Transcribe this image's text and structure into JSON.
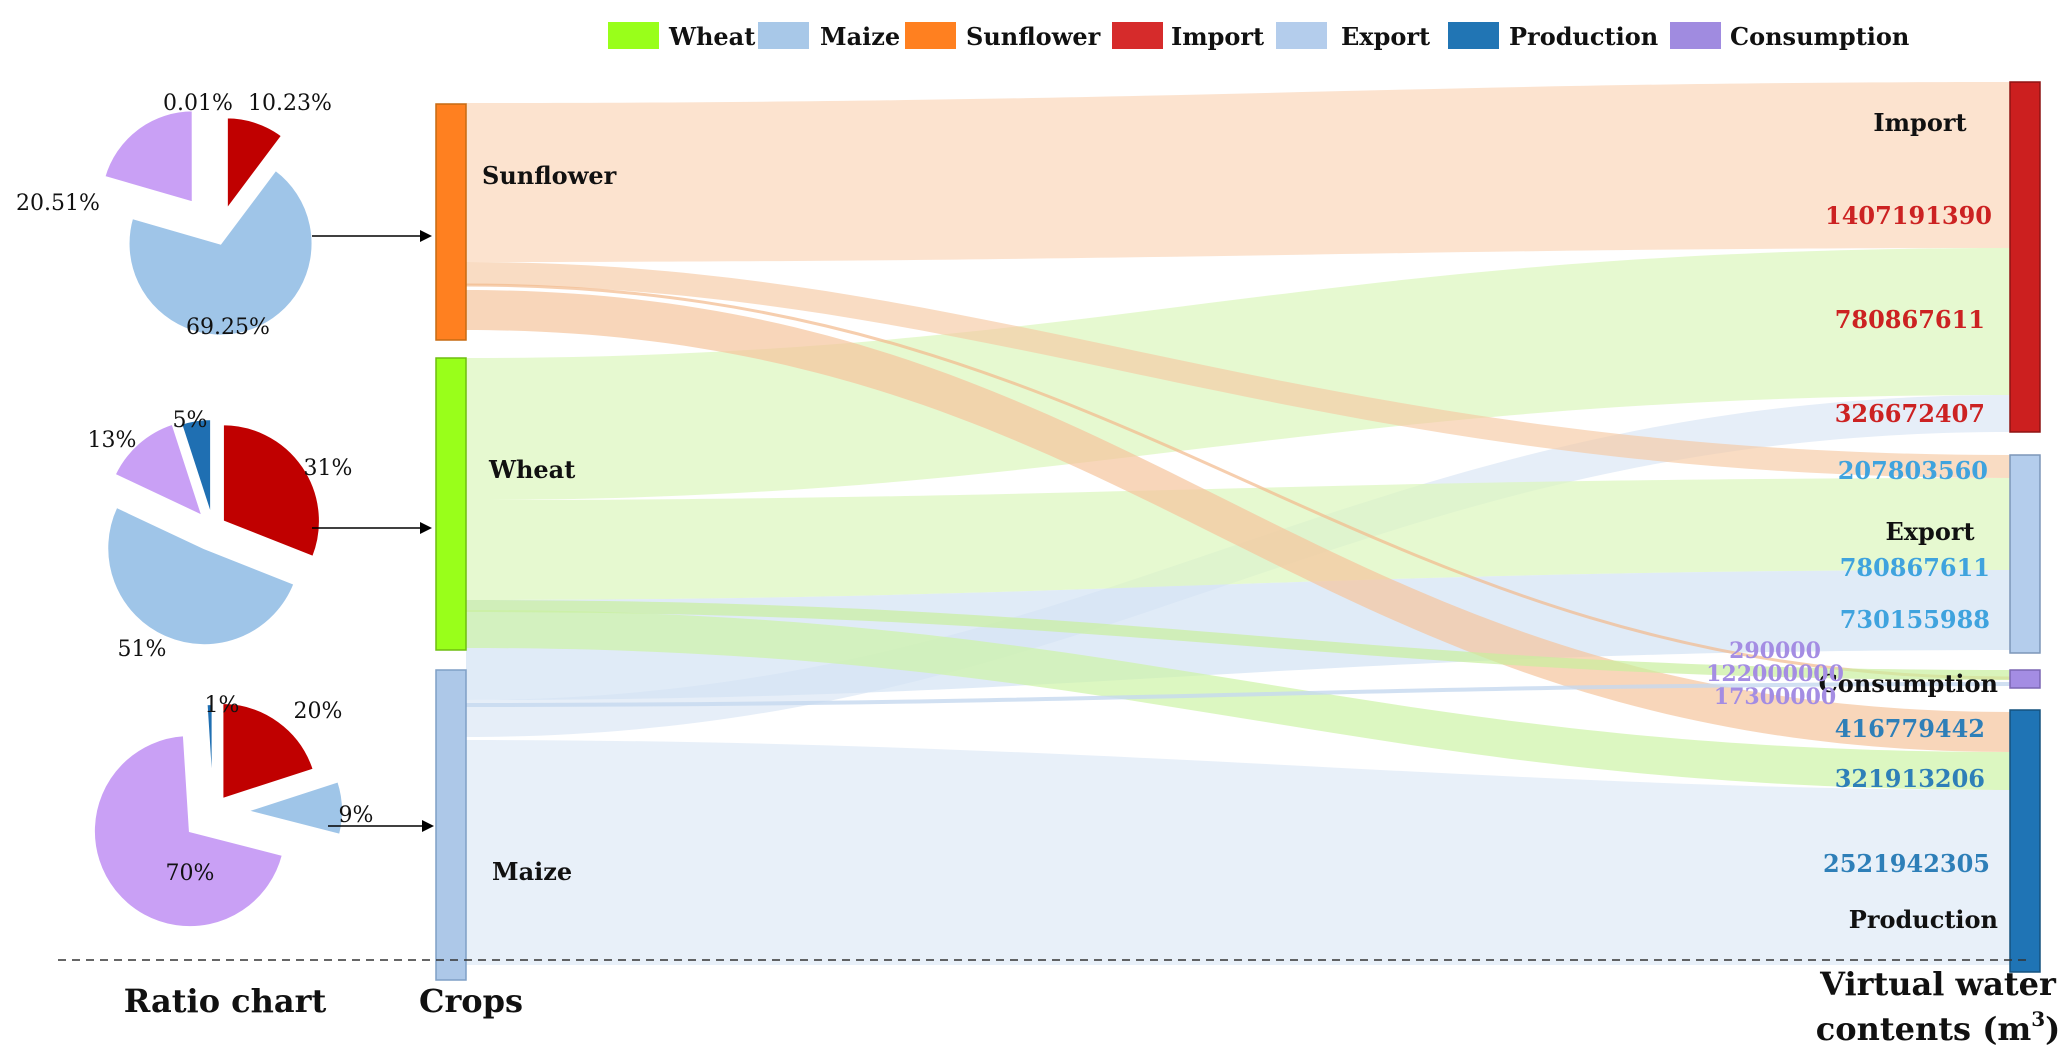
{
  "legend": [
    {
      "label": "Wheat",
      "color": "#99ff1a"
    },
    {
      "label": "Maize",
      "color": "#a8c8e8"
    },
    {
      "label": "Sunflower",
      "color": "#ff8020"
    },
    {
      "label": "Import",
      "color": "#d62b2b"
    },
    {
      "label": "Export",
      "color": "#b4cdec"
    },
    {
      "label": "Production",
      "color": "#2175b4"
    },
    {
      "label": "Consumption",
      "color": "#a08be0"
    }
  ],
  "bottom_labels": {
    "ratio": "Ratio chart",
    "crops": "Crops",
    "vwc_line1": "Virtual water",
    "vwc_line2": "contents (m",
    "vwc_sup": "3",
    "vwc_end": ")"
  },
  "colors": {
    "import": "#cc1f1f",
    "export": "#b1cbe9",
    "production": "#1f74b5",
    "consumption": "#a48de3",
    "pie_import": "#c00000",
    "pie_export": "#9fc5e8",
    "pie_consumption": "#c9a0f5",
    "pie_production": "#1f6fb2"
  },
  "chart_data": [
    {
      "type": "pie",
      "crop": "Sunflower",
      "slices": [
        {
          "category": "Import",
          "value": 10.23,
          "label": "10.23%"
        },
        {
          "category": "Export",
          "value": 69.25,
          "label": "69.25%"
        },
        {
          "category": "Consumption",
          "value": 20.51,
          "label": "20.51%"
        },
        {
          "category": "Production",
          "value": 0.01,
          "label": "0.01%"
        }
      ]
    },
    {
      "type": "pie",
      "crop": "Wheat",
      "slices": [
        {
          "category": "Import",
          "value": 31,
          "label": "31%"
        },
        {
          "category": "Export",
          "value": 51,
          "label": "51%"
        },
        {
          "category": "Consumption",
          "value": 13,
          "label": "13%"
        },
        {
          "category": "Production",
          "value": 5,
          "label": "5%"
        }
      ]
    },
    {
      "type": "pie",
      "crop": "Maize",
      "slices": [
        {
          "category": "Import",
          "value": 20,
          "label": "20%"
        },
        {
          "category": "Export",
          "value": 9,
          "label": "9%"
        },
        {
          "category": "Consumption",
          "value": 70,
          "label": "70%"
        },
        {
          "category": "Production",
          "value": 1,
          "label": "1%"
        }
      ]
    },
    {
      "type": "sankey",
      "sources": [
        "Sunflower",
        "Wheat",
        "Maize"
      ],
      "targets": [
        "Import",
        "Export",
        "Consumption",
        "Production"
      ],
      "target_values": {
        "Import": [
          "1407191390",
          "780867611",
          "326672407"
        ],
        "Export": [
          "207803560",
          "780867611",
          "730155988"
        ],
        "Consumption": [
          "290000",
          "122000000",
          "17300000"
        ],
        "Production": [
          "416779442",
          "321913206",
          "2521942305"
        ]
      },
      "flows": [
        {
          "source": "Sunflower",
          "target": "Import",
          "value": 1407191390
        },
        {
          "source": "Sunflower",
          "target": "Export",
          "value": 207803560
        },
        {
          "source": "Sunflower",
          "target": "Consumption",
          "value": 290000
        },
        {
          "source": "Sunflower",
          "target": "Production",
          "value": 416779442
        },
        {
          "source": "Wheat",
          "target": "Import",
          "value": 780867611
        },
        {
          "source": "Wheat",
          "target": "Export",
          "value": 780867611
        },
        {
          "source": "Wheat",
          "target": "Consumption",
          "value": 122000000
        },
        {
          "source": "Wheat",
          "target": "Production",
          "value": 321913206
        },
        {
          "source": "Maize",
          "target": "Import",
          "value": 326672407
        },
        {
          "source": "Maize",
          "target": "Export",
          "value": 730155988
        },
        {
          "source": "Maize",
          "target": "Consumption",
          "value": 17300000
        },
        {
          "source": "Maize",
          "target": "Production",
          "value": 2521942305
        }
      ]
    }
  ]
}
